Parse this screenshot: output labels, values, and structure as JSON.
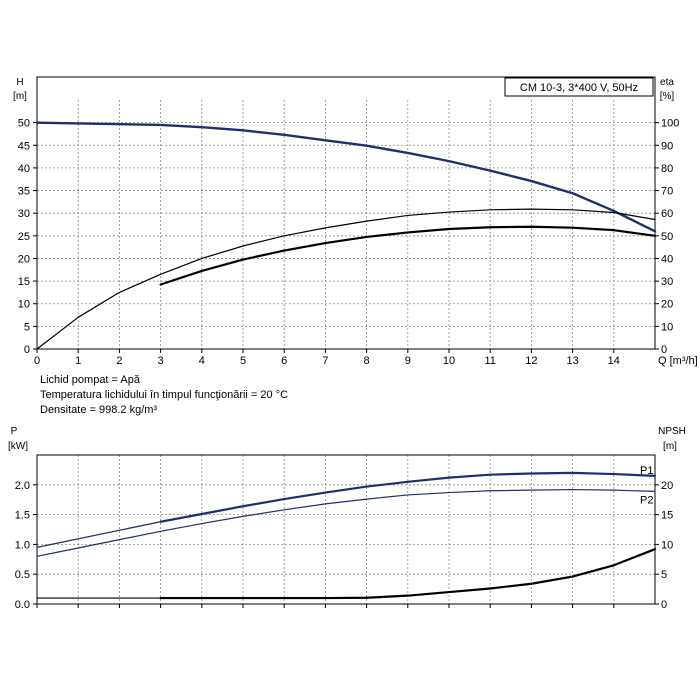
{
  "fluid_info": [
    "Lichid pompat = Apă",
    "Temperatura lichidului în timpul funcţionării = 20 °C",
    "Densitate = 998.2 kg/m³"
  ],
  "chart_data": [
    {
      "type": "line",
      "title": "CM 10-3, 3*400 V, 50Hz",
      "x_axis": {
        "label": "Q [m³/h]",
        "range": [
          0,
          15
        ],
        "ticks": [
          0,
          1,
          2,
          3,
          4,
          5,
          6,
          7,
          8,
          9,
          10,
          11,
          12,
          13,
          14
        ]
      },
      "y_axis_left": {
        "label_top": "H",
        "label_unit": "[m]",
        "range": [
          0,
          55
        ],
        "ticks": [
          0,
          5,
          10,
          15,
          20,
          25,
          30,
          35,
          40,
          45,
          50
        ]
      },
      "y_axis_right": {
        "label_top": "eta",
        "label_unit": "[%]",
        "range": [
          0,
          110
        ],
        "ticks": [
          0,
          10,
          20,
          30,
          40,
          50,
          60,
          70,
          80,
          90,
          100
        ]
      },
      "grid": true,
      "series": [
        {
          "axis": "left",
          "color": "#1f2f6e",
          "width": 2.4,
          "x": [
            0,
            3,
            4,
            5,
            6,
            7,
            8,
            9,
            10,
            11,
            12,
            13,
            14,
            15
          ],
          "y": [
            50,
            49.5,
            49.0,
            48.3,
            47.3,
            46.1,
            44.9,
            43.3,
            41.5,
            39.4,
            37.1,
            34.4,
            30.5,
            26.0
          ]
        },
        {
          "axis": "right",
          "color": "#000000",
          "width": 1.2,
          "x": [
            0,
            1,
            2,
            3,
            4,
            5,
            6,
            7,
            8,
            9,
            10,
            11,
            12,
            13,
            14,
            15
          ],
          "y": [
            0,
            14,
            25,
            33,
            40,
            45.5,
            50,
            53.5,
            56.5,
            59,
            60.5,
            61.5,
            61.8,
            61.5,
            60.3,
            57.2
          ]
        },
        {
          "axis": "right",
          "color": "#000000",
          "width": 2.2,
          "x": [
            3,
            4,
            5,
            6,
            7,
            8,
            9,
            10,
            11,
            12,
            13,
            14,
            15
          ],
          "y": [
            28.5,
            34.5,
            39.5,
            43.5,
            46.8,
            49.5,
            51.5,
            53,
            53.8,
            54,
            53.6,
            52.5,
            50
          ]
        }
      ]
    },
    {
      "type": "line",
      "x_axis": {
        "range": [
          0,
          15
        ]
      },
      "y_axis_left": {
        "label_top": "P",
        "label_unit": "[kW]",
        "range": [
          0,
          2.5
        ],
        "ticks": [
          "0.0",
          "0.5",
          "1.0",
          "1.5",
          "2.0"
        ],
        "tick_values": [
          0,
          0.5,
          1.0,
          1.5,
          2.0
        ]
      },
      "y_axis_right": {
        "label_top": "NPSH",
        "label_unit": "[m]",
        "range": [
          0,
          25
        ],
        "ticks": [
          0,
          5,
          10,
          15,
          20
        ],
        "tick_values": [
          0,
          5,
          10,
          15,
          20
        ]
      },
      "grid": true,
      "series": [
        {
          "name": "P1",
          "axis": "left",
          "color": "#1f2f6e",
          "width": 1.3,
          "x": [
            0,
            3
          ],
          "y": [
            0.95,
            1.38
          ]
        },
        {
          "name": "P1",
          "axis": "left",
          "color": "#1f2f6e",
          "width": 2.2,
          "x": [
            3,
            4,
            5,
            6,
            7,
            8,
            9,
            10,
            11,
            12,
            13,
            14,
            15
          ],
          "y": [
            1.38,
            1.51,
            1.64,
            1.76,
            1.87,
            1.97,
            2.05,
            2.12,
            2.17,
            2.19,
            2.2,
            2.18,
            2.15
          ]
        },
        {
          "name": "P2",
          "axis": "left",
          "color": "#1f2f6e",
          "width": 1.2,
          "x": [
            0,
            1,
            2,
            3,
            4,
            5,
            6,
            7,
            8,
            9,
            10,
            11,
            12,
            13,
            14,
            15
          ],
          "y": [
            0.8,
            0.94,
            1.08,
            1.22,
            1.35,
            1.47,
            1.58,
            1.68,
            1.76,
            1.83,
            1.87,
            1.9,
            1.91,
            1.92,
            1.91,
            1.89
          ]
        },
        {
          "name": "NPSH",
          "axis": "right",
          "color": "#000000",
          "width": 1.2,
          "x": [
            0,
            3
          ],
          "y": [
            1,
            1
          ]
        },
        {
          "name": "NPSH",
          "axis": "right",
          "color": "#000000",
          "width": 2.2,
          "x": [
            3,
            4,
            5,
            6,
            7,
            8,
            9,
            10,
            11,
            12,
            13,
            14,
            15
          ],
          "y": [
            1,
            1,
            1,
            1,
            1,
            1.05,
            1.4,
            2.0,
            2.6,
            3.4,
            4.6,
            6.5,
            9.2
          ]
        }
      ],
      "curve_labels": [
        {
          "text": "P1",
          "x": 14.8,
          "y": 2.25
        },
        {
          "text": "P2",
          "x": 14.8,
          "y": 1.75
        }
      ]
    }
  ]
}
